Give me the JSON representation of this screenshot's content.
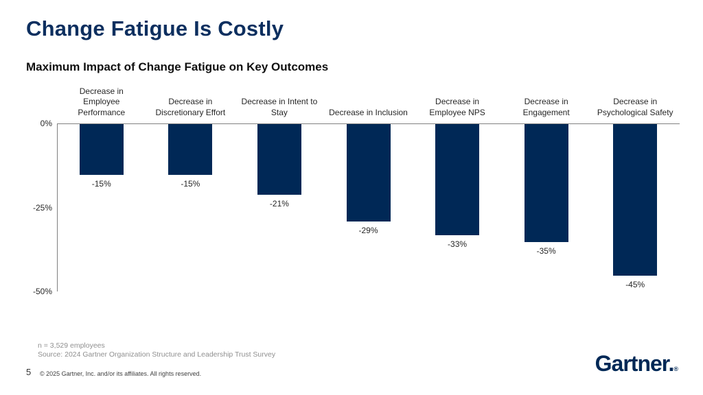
{
  "header": {
    "title": "Change Fatigue Is Costly"
  },
  "chart_data": {
    "type": "bar",
    "title": "Maximum Impact of Change Fatigue on Key Outcomes",
    "categories": [
      "Decrease in\nEmployee\nPerformance",
      "Decrease in\nDiscretionary Effort",
      "Decrease in Intent to\nStay",
      "Decrease in Inclusion",
      "Decrease in\nEmployee NPS",
      "Decrease in\nEngagement",
      "Decrease in\nPsychological Safety"
    ],
    "values": [
      -15,
      -15,
      -21,
      -29,
      -33,
      -35,
      -45
    ],
    "value_labels": [
      "-15%",
      "-15%",
      "-21%",
      "-29%",
      "-33%",
      "-35%",
      "-45%"
    ],
    "xlabel": "",
    "ylabel": "",
    "ylim": [
      -50,
      0
    ],
    "y_ticks": [
      {
        "value": 0,
        "label": "0%"
      },
      {
        "value": -25,
        "label": "-25%"
      },
      {
        "value": -50,
        "label": "-50%"
      }
    ],
    "bar_color": "#002856",
    "grid": false,
    "legend_position": "none"
  },
  "footnote": {
    "sample": "n = 3,529 employees",
    "source": "Source: 2024 Gartner Organization Structure and Leadership Trust Survey"
  },
  "footer": {
    "page_number": "5",
    "copyright": "© 2025 Gartner, Inc. and/or its affiliates. All rights reserved.",
    "logo_text": "Gartner.",
    "logo_reg": "®"
  },
  "colors": {
    "navy": "#002856",
    "title_navy": "#0d2f5f",
    "axis_gray": "#808080",
    "footnote_gray": "#8f8f8f"
  }
}
